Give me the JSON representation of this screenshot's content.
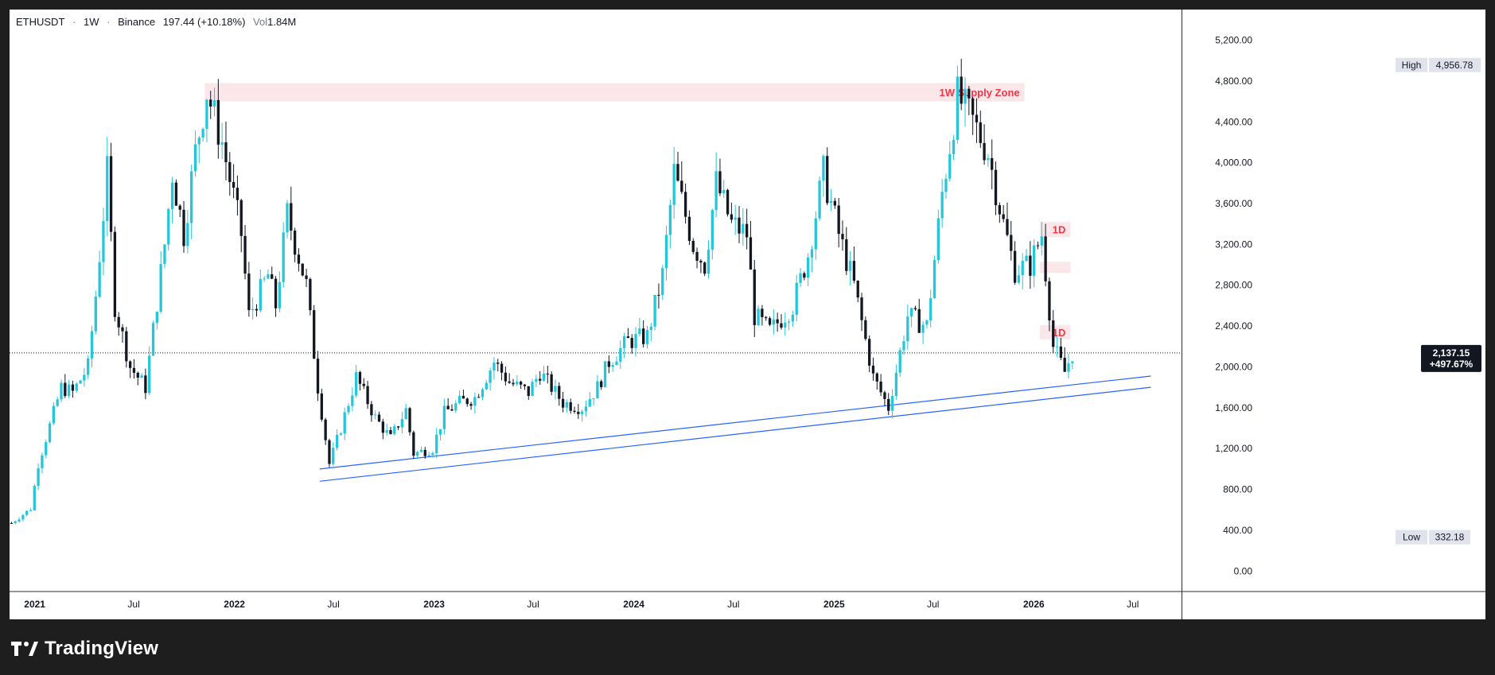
{
  "header": {
    "symbol": "ETHUSDT",
    "interval": "1W",
    "exchange": "Binance",
    "price_change": "197.44 (+10.18%)",
    "volume_label": "Vol",
    "volume_value": "1.84M",
    "separator": "·"
  },
  "footer": {
    "brand": "TradingView"
  },
  "colors": {
    "up": "#26c6da",
    "down": "#131722",
    "trendline": "#2962ff",
    "supply_zone": "#f7c9cf",
    "zone_label": "#f23645",
    "axis_text": "#131722",
    "last_price_bg": "#131722"
  },
  "chart_data": {
    "type": "candlestick",
    "title": "",
    "x_range": [
      "2020-11-16",
      "2026-09-28"
    ],
    "y_range": [
      -200,
      5500
    ],
    "y_ticks": [
      0,
      400,
      800,
      1200,
      1600,
      2000,
      2400,
      2800,
      3200,
      3600,
      4000,
      4400,
      4800,
      5200
    ],
    "y_tick_labels": [
      "0.00",
      "400.00",
      "800.00",
      "1,200.00",
      "1,600.00",
      "2,000.00",
      "2,400.00",
      "2,800.00",
      "3,200.00",
      "3,600.00",
      "4,000.00",
      "4,400.00",
      "4,800.00",
      "5,200.00"
    ],
    "x_ticks": [
      {
        "label": "2021",
        "date": "2021-01-01",
        "bold": true
      },
      {
        "label": "Jul",
        "date": "2021-07-01",
        "bold": false
      },
      {
        "label": "2022",
        "date": "2022-01-01",
        "bold": true
      },
      {
        "label": "Jul",
        "date": "2022-07-01",
        "bold": false
      },
      {
        "label": "2023",
        "date": "2023-01-01",
        "bold": true
      },
      {
        "label": "Jul",
        "date": "2023-07-01",
        "bold": false
      },
      {
        "label": "2024",
        "date": "2024-01-01",
        "bold": true
      },
      {
        "label": "Jul",
        "date": "2024-07-01",
        "bold": false
      },
      {
        "label": "2025",
        "date": "2025-01-01",
        "bold": true
      },
      {
        "label": "Jul",
        "date": "2025-07-01",
        "bold": false
      },
      {
        "label": "2026",
        "date": "2026-01-01",
        "bold": true
      },
      {
        "label": "Jul",
        "date": "2026-07-01",
        "bold": false
      }
    ],
    "price_path": [
      [
        "2020-11-16",
        470
      ],
      [
        "2020-12-21",
        610
      ],
      [
        "2021-01-04",
        1050
      ],
      [
        "2021-02-15",
        1800
      ],
      [
        "2021-03-08",
        1750
      ],
      [
        "2021-04-05",
        2000
      ],
      [
        "2021-04-19",
        2700
      ],
      [
        "2021-05-10",
        3900
      ],
      [
        "2021-05-24",
        2600
      ],
      [
        "2021-06-21",
        2000
      ],
      [
        "2021-07-19",
        1800
      ],
      [
        "2021-08-23",
        3200
      ],
      [
        "2021-09-06",
        3900
      ],
      [
        "2021-09-27",
        3300
      ],
      [
        "2021-10-18",
        4100
      ],
      [
        "2021-11-08",
        4700
      ],
      [
        "2021-12-06",
        4200
      ],
      [
        "2022-01-10",
        3300
      ],
      [
        "2022-01-24",
        2500
      ],
      [
        "2022-02-28",
        2900
      ],
      [
        "2022-03-14",
        2600
      ],
      [
        "2022-04-04",
        3500
      ],
      [
        "2022-05-09",
        2800
      ],
      [
        "2022-05-30",
        1800
      ],
      [
        "2022-06-20",
        1050
      ],
      [
        "2022-07-11",
        1400
      ],
      [
        "2022-08-08",
        1900
      ],
      [
        "2022-09-12",
        1500
      ],
      [
        "2022-10-10",
        1300
      ],
      [
        "2022-11-07",
        1580
      ],
      [
        "2022-11-21",
        1150
      ],
      [
        "2022-12-26",
        1200
      ],
      [
        "2023-01-16",
        1550
      ],
      [
        "2023-02-13",
        1650
      ],
      [
        "2023-03-13",
        1700
      ],
      [
        "2023-04-17",
        2050
      ],
      [
        "2023-05-15",
        1850
      ],
      [
        "2023-06-19",
        1750
      ],
      [
        "2023-07-10",
        1950
      ],
      [
        "2023-08-21",
        1650
      ],
      [
        "2023-09-25",
        1600
      ],
      [
        "2023-10-23",
        1800
      ],
      [
        "2023-11-13",
        2050
      ],
      [
        "2023-12-18",
        2250
      ],
      [
        "2024-01-22",
        2300
      ],
      [
        "2024-02-19",
        2900
      ],
      [
        "2024-03-11",
        3900
      ],
      [
        "2024-04-15",
        3200
      ],
      [
        "2024-05-06",
        3000
      ],
      [
        "2024-05-27",
        3800
      ],
      [
        "2024-06-24",
        3400
      ],
      [
        "2024-07-22",
        3300
      ],
      [
        "2024-08-05",
        2500
      ],
      [
        "2024-09-02",
        2350
      ],
      [
        "2024-10-14",
        2600
      ],
      [
        "2024-11-11",
        3100
      ],
      [
        "2024-12-09",
        3900
      ],
      [
        "2025-01-06",
        3300
      ],
      [
        "2025-02-03",
        2800
      ],
      [
        "2025-03-10",
        1900
      ],
      [
        "2025-04-07",
        1600
      ],
      [
        "2025-05-12",
        2500
      ],
      [
        "2025-06-16",
        2400
      ],
      [
        "2025-07-14",
        3700
      ],
      [
        "2025-08-11",
        4650
      ],
      [
        "2025-09-08",
        4400
      ],
      [
        "2025-10-06",
        4100
      ],
      [
        "2025-11-03",
        3400
      ],
      [
        "2025-11-24",
        2950
      ],
      [
        "2025-12-22",
        3000
      ],
      [
        "2026-01-12",
        3300
      ],
      [
        "2026-02-02",
        2200
      ],
      [
        "2026-02-23",
        1950
      ],
      [
        "2026-03-09",
        2137
      ]
    ],
    "levels": {
      "high": {
        "label": "High",
        "value": 4956.78,
        "value_label": "4,956.78"
      },
      "low": {
        "label": "Low",
        "value": 332.18,
        "value_label": "332.18"
      },
      "last": {
        "value": 2137.15,
        "value_label": "2,137.15",
        "change_label": "+497.67%"
      }
    },
    "zones": [
      {
        "label": "1W Supply Zone",
        "start": "2021-11-08",
        "end": "2025-12-15",
        "low": 4600,
        "high": 4780
      },
      {
        "label": "1D",
        "start": "2026-01-12",
        "end": "2026-03-09",
        "low": 3270,
        "high": 3420
      },
      {
        "label": "",
        "start": "2026-01-12",
        "end": "2026-03-09",
        "low": 2920,
        "high": 3030
      },
      {
        "label": "1D",
        "start": "2026-01-12",
        "end": "2026-03-09",
        "low": 2270,
        "high": 2410
      }
    ],
    "trendlines": [
      {
        "start": [
          "2022-06-06",
          1000
        ],
        "end": [
          "2026-08-03",
          1910
        ]
      },
      {
        "start": [
          "2022-06-06",
          880
        ],
        "end": [
          "2026-08-03",
          1800
        ]
      }
    ]
  }
}
